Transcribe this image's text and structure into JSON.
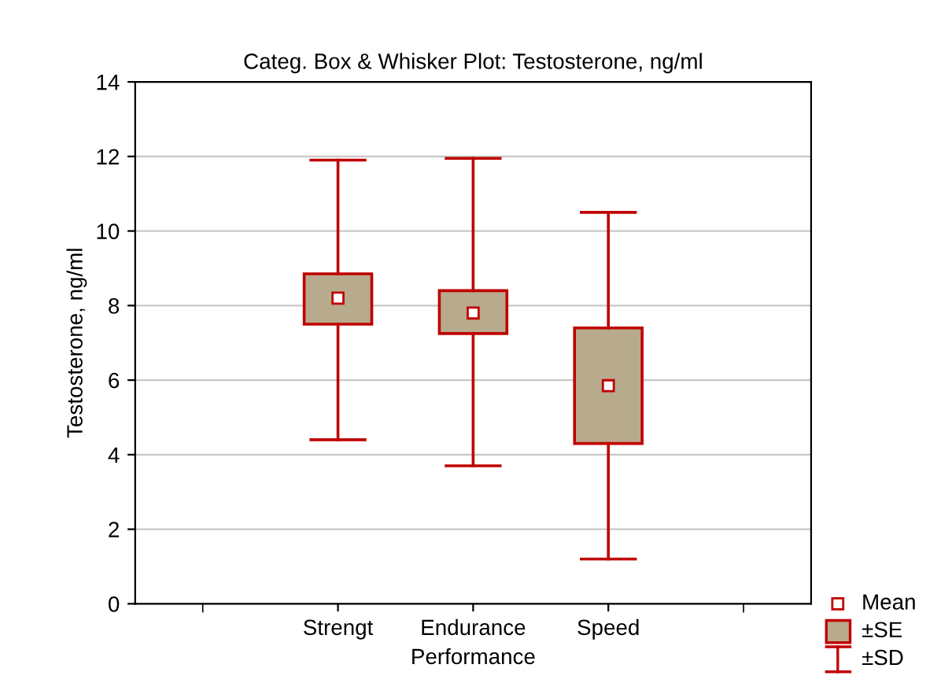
{
  "chart_data": {
    "type": "box",
    "title": "Categ. Box & Whisker Plot: Testosterone, ng/ml",
    "xlabel": "Performance",
    "ylabel": "Testosterone, ng/ml",
    "categories": [
      "Strengt",
      "Endurance",
      "Speed"
    ],
    "series": [
      {
        "color": "#b8aa8c",
        "boxes": [
          {
            "low": 4.4,
            "q1": 7.5,
            "median": 8.2,
            "q3": 8.85,
            "high": 11.9
          },
          {
            "low": 3.7,
            "q1": 7.25,
            "median": 7.8,
            "q3": 8.4,
            "high": 11.95
          },
          {
            "low": 1.2,
            "q1": 4.3,
            "median": 5.85,
            "q3": 7.4,
            "high": 10.5
          }
        ]
      }
    ],
    "ylim": [
      0,
      14
    ],
    "yticks": [
      0,
      2,
      4,
      6,
      8,
      10,
      12,
      14
    ],
    "grid": "y",
    "annotations": [
      "Mean",
      "±SE",
      "±SD"
    ]
  }
}
